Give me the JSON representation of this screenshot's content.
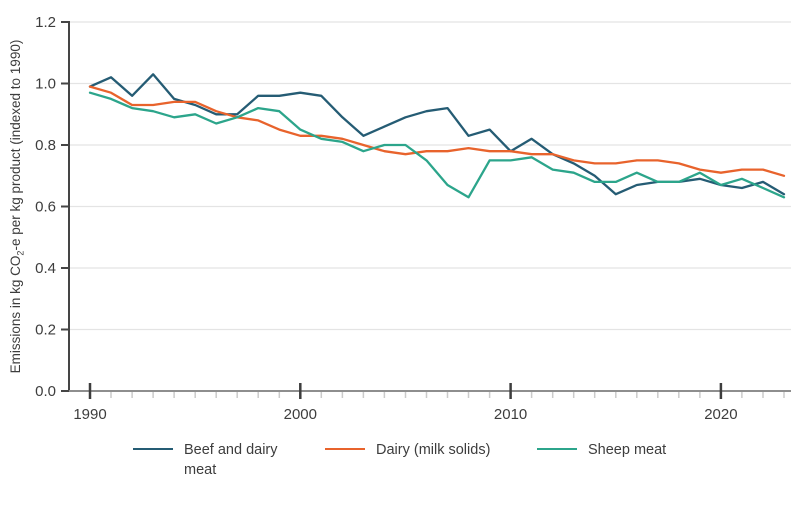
{
  "chart_data": {
    "type": "line",
    "title": "",
    "xlabel": "",
    "ylabel": "Emissions in kg CO2-e per kg product (indexed to 1990)",
    "ylabel_parts": {
      "pre": "Emissions in kg CO",
      "sub": "2",
      "post": "-e per kg product (indexed to 1990)"
    },
    "x": [
      1990,
      1991,
      1992,
      1993,
      1994,
      1995,
      1996,
      1997,
      1998,
      1999,
      2000,
      2001,
      2002,
      2003,
      2004,
      2005,
      2006,
      2007,
      2008,
      2009,
      2010,
      2011,
      2012,
      2013,
      2014,
      2015,
      2016,
      2017,
      2018,
      2019,
      2020,
      2021,
      2022,
      2023
    ],
    "series": [
      {
        "name": "Beef and dairy meat",
        "color": "#255c74",
        "values": [
          0.99,
          1.02,
          0.96,
          1.03,
          0.95,
          0.93,
          0.9,
          0.9,
          0.96,
          0.96,
          0.97,
          0.96,
          0.89,
          0.83,
          0.86,
          0.89,
          0.91,
          0.92,
          0.83,
          0.85,
          0.78,
          0.82,
          0.77,
          0.74,
          0.7,
          0.64,
          0.67,
          0.68,
          0.68,
          0.69,
          0.67,
          0.66,
          0.68,
          0.64
        ]
      },
      {
        "name": "Dairy (milk solids)",
        "color": "#e8632c",
        "values": [
          0.99,
          0.97,
          0.93,
          0.93,
          0.94,
          0.94,
          0.91,
          0.89,
          0.88,
          0.85,
          0.83,
          0.83,
          0.82,
          0.8,
          0.78,
          0.77,
          0.78,
          0.78,
          0.79,
          0.78,
          0.78,
          0.77,
          0.77,
          0.75,
          0.74,
          0.74,
          0.75,
          0.75,
          0.74,
          0.72,
          0.71,
          0.72,
          0.72,
          0.7
        ]
      },
      {
        "name": "Sheep meat",
        "color": "#2ca58b",
        "values": [
          0.97,
          0.95,
          0.92,
          0.91,
          0.89,
          0.9,
          0.87,
          0.89,
          0.92,
          0.91,
          0.85,
          0.82,
          0.81,
          0.78,
          0.8,
          0.8,
          0.75,
          0.67,
          0.63,
          0.75,
          0.75,
          0.76,
          0.72,
          0.71,
          0.68,
          0.68,
          0.71,
          0.68,
          0.68,
          0.71,
          0.67,
          0.69,
          0.66,
          0.63
        ]
      }
    ],
    "ylim": [
      0,
      1.2
    ],
    "y_ticks": [
      0.0,
      0.2,
      0.4,
      0.6,
      0.8,
      1.0,
      1.2
    ],
    "x_major_ticks": [
      1990,
      2000,
      2010,
      2020
    ],
    "grid": "horizontal gridlines on",
    "legend_position": "bottom"
  },
  "legend": {
    "items": [
      "Beef and dairy meat",
      "Dairy (milk solids)",
      "Sheep meat"
    ]
  },
  "colors": {
    "axis_y": "#454545",
    "axis_x": "#8e8e8e",
    "gridline": "#e4e4e4",
    "minor_tick": "#cbcbcb",
    "major_tick": "#3d3d3d",
    "text": "#3d3d3d"
  }
}
